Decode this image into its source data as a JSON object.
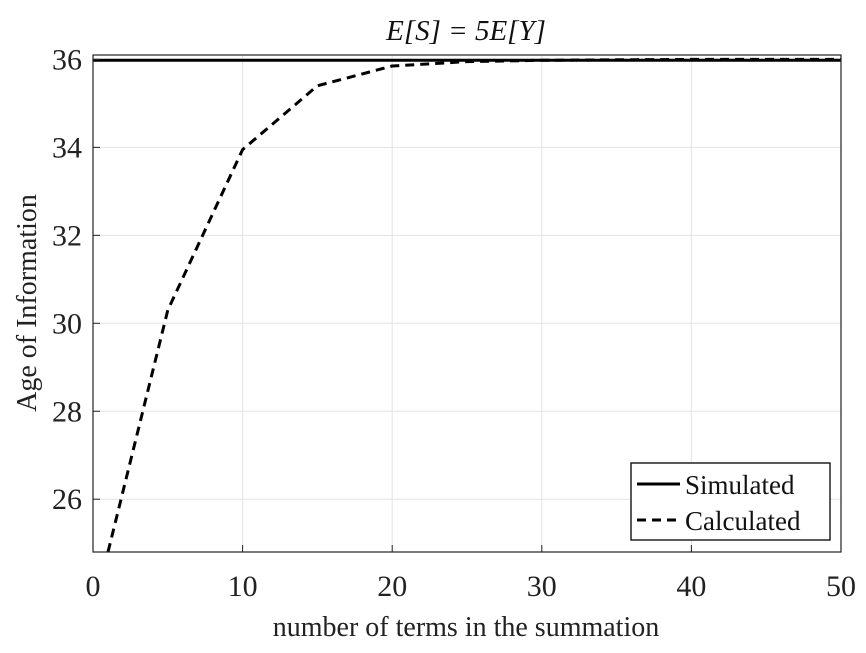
{
  "chart_data": {
    "type": "line",
    "title": "E[S] = 5E[Y]",
    "xlabel": "number of terms in the summation",
    "ylabel": "Age of Information",
    "xlim": [
      0,
      50
    ],
    "ylim": [
      24.8,
      36.1
    ],
    "x_ticks": [
      0,
      10,
      20,
      30,
      40,
      50
    ],
    "y_ticks": [
      26,
      28,
      30,
      32,
      34,
      36
    ],
    "grid": true,
    "legend_position": "bottom-right",
    "series": [
      {
        "name": "Simulated",
        "style": "solid",
        "color": "#000000",
        "x": [
          0,
          50
        ],
        "y": [
          35.98,
          35.98
        ]
      },
      {
        "name": "Calculated",
        "style": "dashed",
        "color": "#000000",
        "x": [
          1,
          5,
          10,
          15,
          20,
          25,
          30,
          35,
          40,
          45,
          50
        ],
        "y": [
          24.8,
          30.3,
          33.95,
          35.4,
          35.85,
          35.95,
          35.98,
          35.99,
          36.0,
          36.0,
          36.0
        ]
      }
    ]
  }
}
